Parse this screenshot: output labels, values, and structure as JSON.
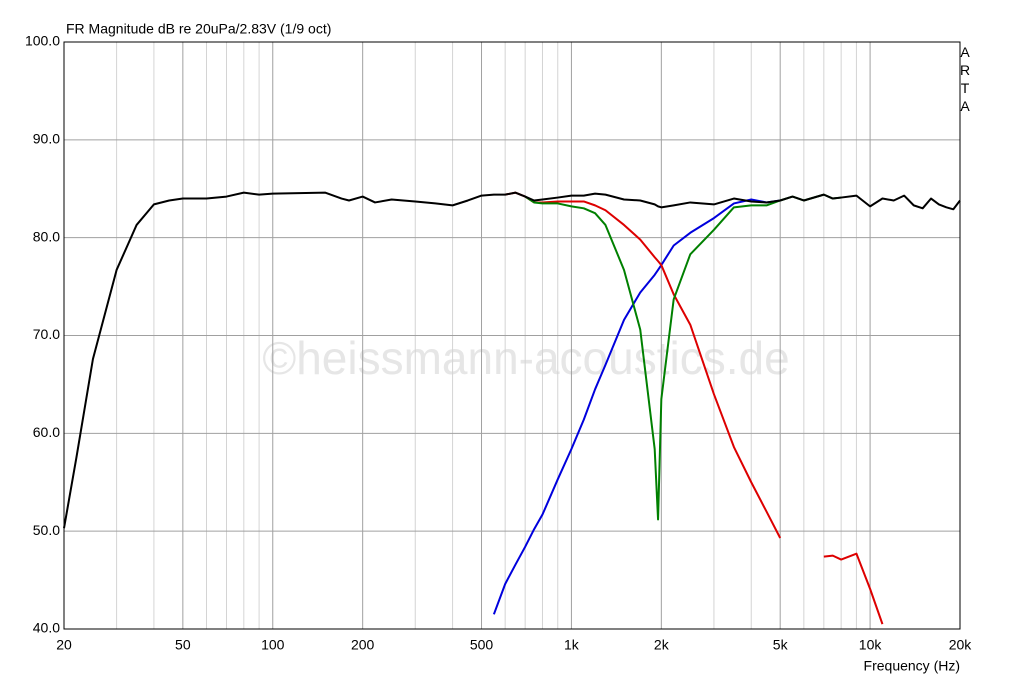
{
  "chart_data": {
    "type": "line",
    "title": "FR Magnitude dB re 20uPa/2.83V (1/9 oct)",
    "side_label": "ARTA",
    "watermark": "©heissmann-acoustics.de",
    "x_label": "Frequency (Hz)",
    "x_scale": "log",
    "grid": true,
    "xlim": [
      20,
      20000
    ],
    "ylim": [
      40,
      100
    ],
    "xticks": [
      20,
      50,
      100,
      200,
      500,
      {
        "value": 1000,
        "label": "1k"
      },
      {
        "value": 2000,
        "label": "2k"
      },
      {
        "value": 5000,
        "label": "5k"
      },
      {
        "value": 10000,
        "label": "10k"
      },
      {
        "value": 20000,
        "label": "20k"
      }
    ],
    "x_minor_ticks": [
      30,
      40,
      60,
      70,
      80,
      90,
      300,
      400,
      600,
      700,
      800,
      900,
      3000,
      4000,
      6000,
      7000,
      8000,
      9000
    ],
    "yticks": [
      {
        "value": 40,
        "label": "40.0"
      },
      {
        "value": 50,
        "label": "50.0"
      },
      {
        "value": 60,
        "label": "60.0"
      },
      {
        "value": 70,
        "label": "70.0"
      },
      {
        "value": 80,
        "label": "80.0"
      },
      {
        "value": 90,
        "label": "90.0"
      },
      {
        "value": 100,
        "label": "100.0"
      }
    ],
    "x": [
      20,
      22,
      25,
      30,
      35,
      40,
      45,
      50,
      60,
      70,
      80,
      90,
      100,
      150,
      170,
      180,
      200,
      220,
      250,
      300,
      350,
      400,
      450,
      500,
      550,
      600,
      650,
      700,
      750,
      800,
      900,
      1000,
      1100,
      1200,
      1300,
      1500,
      1700,
      1900,
      1950,
      2000,
      2200,
      2500,
      3000,
      3500,
      4000,
      4500,
      5000,
      5500,
      6000,
      7000,
      7500,
      8000,
      9000,
      10000,
      11000,
      12000,
      13000,
      14000,
      15000,
      16000,
      17000,
      18000,
      19000,
      20000
    ],
    "series": [
      {
        "color": "#0000dd",
        "values": [
          null,
          null,
          null,
          null,
          null,
          null,
          null,
          null,
          null,
          null,
          null,
          null,
          null,
          null,
          null,
          null,
          null,
          null,
          null,
          null,
          null,
          null,
          null,
          null,
          41.5,
          44.6,
          46.6,
          48.4,
          50.2,
          51.7,
          55.3,
          58.4,
          61.4,
          64.5,
          67.0,
          71.6,
          74.4,
          76.2,
          76.7,
          77.2,
          79.2,
          80.5,
          82.0,
          83.5,
          83.9,
          83.6,
          83.8,
          null,
          null,
          null,
          null,
          null,
          null,
          null,
          null,
          null,
          null,
          null,
          null,
          null,
          null,
          null,
          null,
          null
        ]
      },
      {
        "color": "#dd0000",
        "values": [
          null,
          null,
          null,
          null,
          null,
          null,
          null,
          null,
          null,
          null,
          null,
          null,
          null,
          null,
          null,
          null,
          null,
          null,
          null,
          null,
          null,
          null,
          null,
          null,
          null,
          84.4,
          84.6,
          84.2,
          83.6,
          83.6,
          83.7,
          83.7,
          83.7,
          83.3,
          82.8,
          81.3,
          79.8,
          78.0,
          77.6,
          77.2,
          74.2,
          71.1,
          64.0,
          58.6,
          55.0,
          52.0,
          49.3,
          null,
          null,
          47.4,
          47.5,
          47.1,
          47.7,
          44.1,
          40.5,
          null,
          null,
          null,
          null,
          null,
          null,
          null,
          null,
          null
        ]
      },
      {
        "color": "#008000",
        "values": [
          null,
          null,
          null,
          null,
          null,
          null,
          null,
          null,
          null,
          null,
          null,
          null,
          null,
          null,
          null,
          null,
          null,
          null,
          null,
          null,
          null,
          null,
          null,
          null,
          null,
          null,
          null,
          84.2,
          83.6,
          83.5,
          83.5,
          83.2,
          83.0,
          82.5,
          81.3,
          76.7,
          70.6,
          58.4,
          51.2,
          63.5,
          73.7,
          78.3,
          80.8,
          83.1,
          83.3,
          83.3,
          83.8,
          84.2,
          83.8,
          84.4,
          84.0,
          84.1,
          null,
          null,
          null,
          null,
          null,
          null,
          null,
          null,
          null,
          null,
          null,
          null
        ]
      },
      {
        "color": "#000000",
        "values": [
          50.3,
          57.5,
          67.6,
          76.7,
          81.3,
          83.4,
          83.8,
          84.0,
          84.0,
          84.2,
          84.6,
          84.4,
          84.5,
          84.6,
          84.0,
          83.8,
          84.2,
          83.6,
          83.9,
          83.7,
          83.5,
          83.3,
          83.8,
          84.3,
          84.4,
          84.4,
          84.6,
          84.2,
          83.8,
          83.9,
          84.1,
          84.3,
          84.3,
          84.5,
          84.4,
          83.9,
          83.8,
          83.4,
          83.2,
          83.1,
          83.3,
          83.6,
          83.4,
          84.0,
          83.7,
          83.6,
          83.8,
          84.2,
          83.8,
          84.4,
          84.0,
          84.1,
          84.3,
          83.2,
          84.0,
          83.8,
          84.3,
          83.3,
          83.0,
          84.0,
          83.4,
          83.1,
          82.9,
          83.8
        ]
      }
    ]
  }
}
